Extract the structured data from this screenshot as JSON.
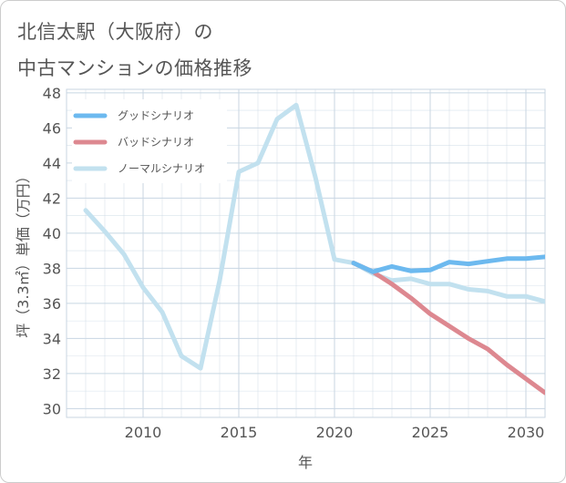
{
  "header": {
    "title_line1": "北信太駅（大阪府）の",
    "title_line2": "中古マンションの価格推移"
  },
  "colors": {
    "good": "#6cb9ef",
    "bad": "#dd8890",
    "normal": "#c2e1ef",
    "grid": "#c8d6e2",
    "axis": "#555555"
  },
  "chart_data": {
    "type": "line",
    "title": "北信太駅（大阪府）の中古マンションの価格推移",
    "xlabel": "年",
    "ylabel": "坪（3.3㎡）単価（万円）",
    "xlim": [
      2006,
      2031
    ],
    "ylim": [
      29.5,
      48.2
    ],
    "xticks": [
      2010,
      2015,
      2020,
      2025,
      2030
    ],
    "yticks": [
      30,
      32,
      34,
      36,
      38,
      40,
      42,
      44,
      46,
      48
    ],
    "legend_position": "top-left",
    "series": [
      {
        "key": "normal",
        "name": "ノーマルシナリオ",
        "x": [
          2007,
          2008,
          2009,
          2010,
          2011,
          2012,
          2013,
          2014,
          2015,
          2016,
          2017,
          2018,
          2019,
          2020,
          2021,
          2022,
          2023,
          2024,
          2025,
          2026,
          2027,
          2028,
          2029,
          2030,
          2031
        ],
        "values": [
          41.3,
          40.1,
          38.8,
          36.9,
          35.5,
          33.0,
          32.3,
          37.3,
          43.5,
          44.0,
          46.5,
          47.3,
          43.2,
          38.5,
          38.3,
          37.7,
          37.3,
          37.4,
          37.1,
          37.1,
          36.8,
          36.7,
          36.4,
          36.4,
          36.1
        ]
      },
      {
        "key": "bad",
        "name": "バッドシナリオ",
        "x": [
          2021,
          2022,
          2023,
          2024,
          2025,
          2026,
          2027,
          2028,
          2029,
          2030,
          2031
        ],
        "values": [
          38.3,
          37.8,
          37.1,
          36.3,
          35.4,
          34.7,
          34.0,
          33.4,
          32.5,
          31.7,
          30.9
        ]
      },
      {
        "key": "good",
        "name": "グッドシナリオ",
        "x": [
          2021,
          2022,
          2023,
          2024,
          2025,
          2026,
          2027,
          2028,
          2029,
          2030,
          2031
        ],
        "values": [
          38.3,
          37.8,
          38.1,
          37.85,
          37.9,
          38.35,
          38.25,
          38.4,
          38.55,
          38.55,
          38.65
        ]
      }
    ],
    "legend": [
      "グッドシナリオ",
      "バッドシナリオ",
      "ノーマルシナリオ"
    ]
  }
}
